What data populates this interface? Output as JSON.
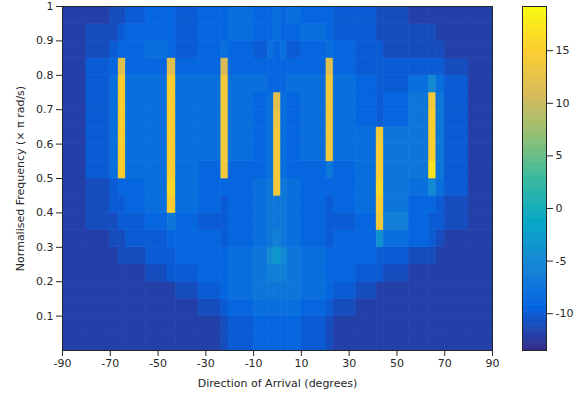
{
  "chart_data": {
    "type": "heatmap",
    "xlabel": "Direction of Arrival (degrees)",
    "ylabel": "Normalised Frequency (× π rad/s)",
    "xlim": [
      -90,
      90
    ],
    "xticks": [
      -90,
      -70,
      -50,
      -30,
      -10,
      10,
      30,
      50,
      70,
      90
    ],
    "ylim": [
      0,
      1
    ],
    "yticks": [
      0.1,
      0.2,
      0.3,
      0.4,
      0.5,
      0.6,
      0.7,
      0.8,
      0.9,
      1
    ],
    "x_edges": [
      -90,
      -80,
      -70,
      -66.5,
      -63.5,
      -55,
      -46,
      -42.5,
      -33,
      -23.5,
      -20.5,
      -10,
      -4,
      -1.5,
      1.5,
      4,
      10,
      20.5,
      23.5,
      33,
      41.5,
      44.5,
      55,
      63.5,
      66.5,
      70,
      80,
      90
    ],
    "y_edges": [
      0,
      0.05,
      0.1,
      0.15,
      0.2,
      0.25,
      0.3,
      0.35,
      0.4,
      0.45,
      0.5,
      0.55,
      0.6,
      0.65,
      0.7,
      0.75,
      0.8,
      0.85,
      0.9,
      0.95,
      1
    ],
    "z": [
      [
        -12,
        -12,
        -12,
        -12,
        -12,
        -12,
        -12,
        -12,
        -12,
        -11,
        -10,
        -9,
        -9,
        -9,
        -9,
        -9,
        -10,
        -11,
        -12,
        -12,
        -12,
        -12,
        -12,
        -12,
        -12,
        -12,
        -12
      ],
      [
        -12,
        -12,
        -12,
        -12,
        -12,
        -12,
        -12,
        -12,
        -12,
        -11,
        -10,
        -9,
        -9,
        -9,
        -9,
        -9,
        -10,
        -11,
        -12,
        -12,
        -12,
        -12,
        -12,
        -12,
        -12,
        -12,
        -12
      ],
      [
        -12,
        -12,
        -12,
        -12,
        -12,
        -12,
        -12,
        -12,
        -11,
        -10,
        -9,
        -8,
        -8,
        -8,
        -8,
        -8,
        -9,
        -10,
        -11,
        -12,
        -12,
        -12,
        -12,
        -12,
        -12,
        -12,
        -12
      ],
      [
        -12,
        -12,
        -12,
        -12,
        -12,
        -12,
        -12,
        -11,
        -10,
        -9,
        -8,
        -7,
        -7,
        -7,
        -7,
        -7,
        -8,
        -9,
        -10,
        -11,
        -12,
        -12,
        -12,
        -12,
        -12,
        -12,
        -12
      ],
      [
        -12,
        -12,
        -12,
        -12,
        -12,
        -11,
        -10,
        -10,
        -9,
        -9,
        -8,
        -7,
        -6,
        -6,
        -6,
        -7,
        -8,
        -9,
        -9,
        -10,
        -10,
        -11,
        -12,
        -12,
        -12,
        -12,
        -12
      ],
      [
        -12,
        -12,
        -12,
        -11,
        -11,
        -10,
        -10,
        -9,
        -9,
        -9,
        -8,
        -7,
        -5,
        -3,
        -5,
        -7,
        -8,
        -9,
        -9,
        -9,
        -10,
        -10,
        -11,
        -11,
        -12,
        -12,
        -12
      ],
      [
        -12,
        -12,
        -11,
        -11,
        -10,
        -10,
        -9,
        -9,
        -9,
        -10,
        -9,
        -8,
        -7,
        -6,
        -7,
        -8,
        -9,
        -10,
        -9,
        -9,
        -4,
        -8,
        -9,
        -10,
        -11,
        -12,
        -12
      ],
      [
        -12,
        -11,
        -11,
        -10,
        -10,
        -9,
        -7,
        -9,
        -10,
        -10,
        -9,
        -8,
        -7,
        -7,
        -7,
        -8,
        -9,
        -10,
        -10,
        -9,
        14,
        -6,
        -9,
        -10,
        -10,
        -11,
        -12
      ],
      [
        -12,
        -11,
        -10,
        -10,
        -9,
        -8,
        15,
        -8,
        -9,
        -10,
        -9,
        -8,
        -7,
        -7,
        -7,
        -8,
        -9,
        -10,
        -9,
        -8,
        15,
        -7,
        -9,
        -9,
        -10,
        -11,
        -12
      ],
      [
        -12,
        -11,
        -10,
        -9,
        -9,
        -8,
        16,
        -8,
        -9,
        -9,
        -9,
        -8,
        -7,
        14,
        -7,
        -8,
        -9,
        -9,
        -9,
        -8,
        16,
        -7,
        -8,
        -5,
        -8,
        -10,
        -12
      ],
      [
        -12,
        -10,
        -8,
        15,
        -8,
        -8,
        15,
        -8,
        -9,
        14,
        -9,
        -9,
        -8,
        14,
        -8,
        -9,
        -9,
        -7,
        -9,
        -8,
        15,
        -7,
        -7,
        17,
        -7,
        -10,
        -12
      ],
      [
        -12,
        -10,
        -8,
        15,
        -8,
        -8,
        15,
        -8,
        -8,
        14,
        -8,
        -9,
        -8,
        14,
        -8,
        -9,
        -8,
        14,
        -8,
        -8,
        15,
        -7,
        -7,
        15,
        -7,
        -10,
        -12
      ],
      [
        -12,
        -10,
        -8,
        15,
        -8,
        -8,
        15,
        -8,
        -8,
        14,
        -8,
        -9,
        -8,
        14,
        -8,
        -9,
        -8,
        14,
        -8,
        -8,
        14,
        -7,
        -7,
        15,
        -7,
        -10,
        -12
      ],
      [
        -12,
        -10,
        -8,
        15,
        -8,
        -8,
        15,
        -8,
        -8,
        14,
        -8,
        -9,
        -8,
        13,
        -8,
        -9,
        -8,
        14,
        -8,
        -9,
        -10,
        -9,
        -7,
        15,
        -7,
        -10,
        -12
      ],
      [
        -12,
        -10,
        -8,
        15,
        -8,
        -8,
        15,
        -8,
        -8,
        14,
        -8,
        -9,
        -8,
        12,
        -8,
        -9,
        -8,
        14,
        -8,
        -9,
        -10,
        -9,
        -7,
        14,
        -7,
        -10,
        -12
      ],
      [
        -12,
        -10,
        -8,
        15,
        -8,
        -8,
        15,
        -8,
        -8,
        14,
        -8,
        -8,
        -9,
        -9,
        -9,
        -8,
        -8,
        14,
        -8,
        -9,
        -10,
        -10,
        -8,
        -5,
        -8,
        -10,
        -12
      ],
      [
        -12,
        -10,
        -9,
        12,
        -9,
        -9,
        12,
        -9,
        -9,
        11,
        -9,
        -9,
        -9,
        -9,
        -9,
        -9,
        -9,
        12,
        -9,
        -10,
        -10,
        -10,
        -10,
        -10,
        -10,
        -11,
        -12
      ],
      [
        -12,
        -11,
        -10,
        -9,
        -9,
        -8,
        -9,
        -10,
        -9,
        -8,
        -9,
        -10,
        -8,
        -9,
        -8,
        -10,
        -9,
        -8,
        -9,
        -10,
        -10,
        -11,
        -11,
        -11,
        -11,
        -12,
        -12
      ],
      [
        -12,
        -11,
        -11,
        -10,
        -9,
        -9,
        -9,
        -10,
        -9,
        -9,
        -8,
        -9,
        -9,
        -8,
        -9,
        -9,
        -8,
        -9,
        -10,
        -10,
        -11,
        -11,
        -11,
        -11,
        -12,
        -12,
        -12
      ],
      [
        -12,
        -12,
        -11,
        -11,
        -10,
        -9,
        -9,
        -10,
        -9,
        -9,
        -8,
        -9,
        -9,
        -8,
        -9,
        -8,
        -9,
        -9,
        -10,
        -10,
        -11,
        -11,
        -12,
        -12,
        -12,
        -12,
        -12
      ]
    ],
    "colorbar": {
      "range": [
        -13.5,
        19.2
      ],
      "ticks": [
        -10,
        -5,
        0,
        5,
        10,
        15
      ]
    }
  }
}
